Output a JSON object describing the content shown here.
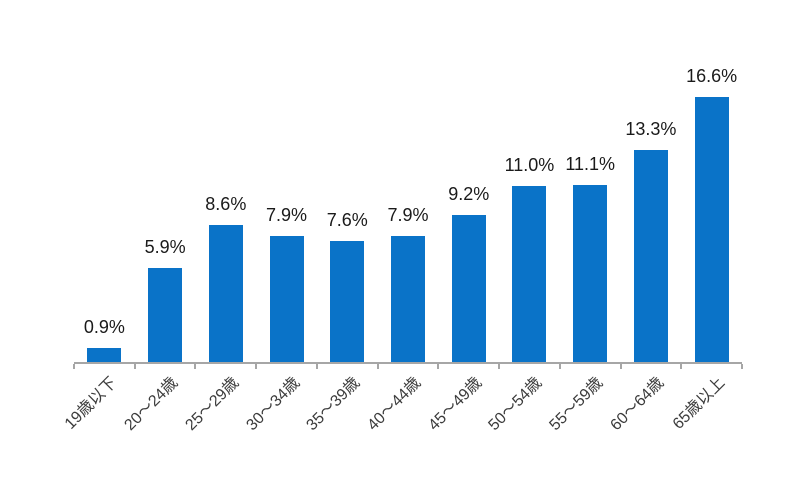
{
  "chart_data": {
    "type": "bar",
    "title": "",
    "xlabel": "",
    "ylabel": "",
    "categories": [
      "19歳以下",
      "20〜24歳",
      "25〜29歳",
      "30〜34歳",
      "35〜39歳",
      "40〜44歳",
      "45〜49歳",
      "50〜54歳",
      "55〜59歳",
      "60〜64歳",
      "65歳以上"
    ],
    "values": [
      0.9,
      5.9,
      8.6,
      7.9,
      7.6,
      7.9,
      9.2,
      11.0,
      11.1,
      13.3,
      16.6
    ],
    "value_labels": [
      "0.9%",
      "5.9%",
      "8.6%",
      "7.9%",
      "7.6%",
      "7.9%",
      "9.2%",
      "11.0%",
      "11.1%",
      "13.3%",
      "16.6%"
    ],
    "unit": "%",
    "ylim": [
      0,
      18
    ],
    "grid": false,
    "legend": "none",
    "category_label_rotation_deg": 45,
    "colors": {
      "bar": "#0A73C8",
      "axis": "#A6A6A6",
      "value_label": "#1A1A1A",
      "category_label": "#3C3C3C",
      "background": "#FFFFFF"
    }
  }
}
